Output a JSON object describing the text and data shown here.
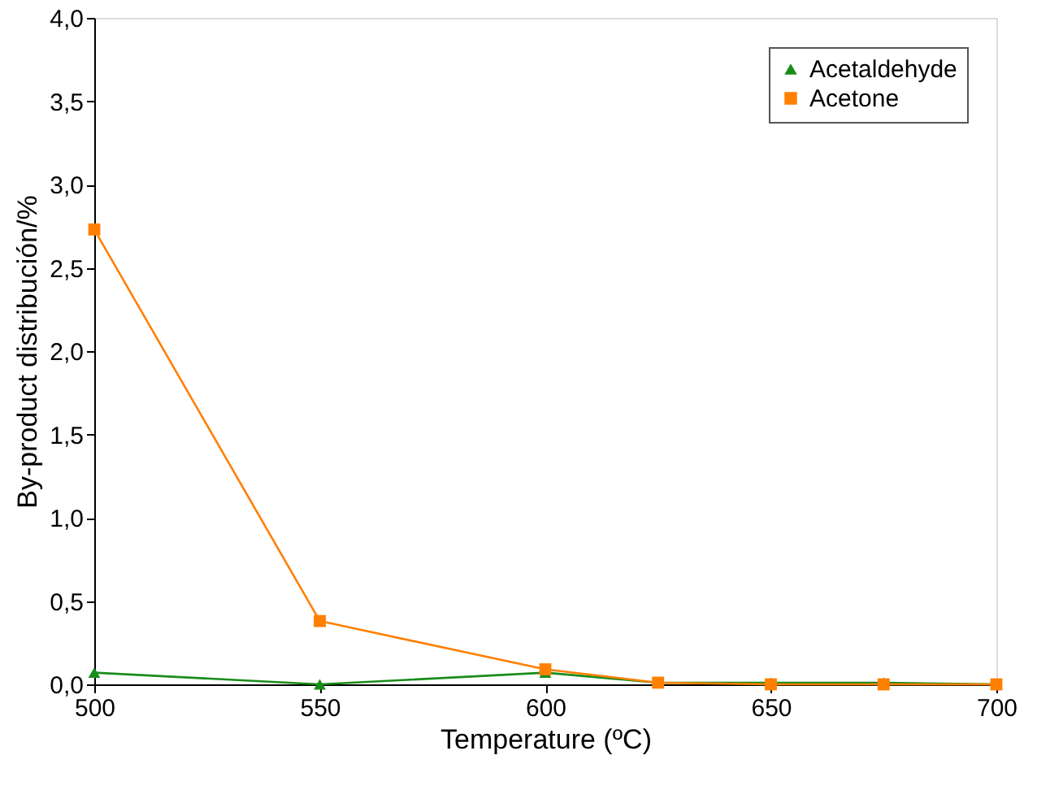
{
  "chart_data": {
    "type": "line",
    "xlabel": "Temperature (ºC)",
    "ylabel": "By-product distribución/%",
    "x": [
      500,
      550,
      600,
      625,
      650,
      675,
      700
    ],
    "series": [
      {
        "name": "Acetaldehyde",
        "color": "#1a8c1a",
        "marker": "triangle",
        "values": [
          0.07,
          0.0,
          0.07,
          0.01,
          0.01,
          0.01,
          0.0
        ]
      },
      {
        "name": "Acetone",
        "color": "#ff8000",
        "marker": "square",
        "values": [
          2.73,
          0.38,
          0.09,
          0.01,
          0.0,
          0.0,
          0.0
        ]
      }
    ],
    "xlim": [
      500,
      700
    ],
    "xticks": [
      500,
      550,
      600,
      650,
      700
    ],
    "ylim": [
      0,
      4
    ],
    "yticks": [
      {
        "value": 0,
        "label": "0,0"
      },
      {
        "value": 0.5,
        "label": "0,5"
      },
      {
        "value": 1,
        "label": "1,0"
      },
      {
        "value": 1.5,
        "label": "1,5"
      },
      {
        "value": 2,
        "label": "2,0"
      },
      {
        "value": 2.5,
        "label": "2,5"
      },
      {
        "value": 3,
        "label": "3,0"
      },
      {
        "value": 3.5,
        "label": "3,5"
      },
      {
        "value": 4,
        "label": "4,0"
      }
    ],
    "grid": false,
    "legend": "top right",
    "line_style": "solid"
  }
}
